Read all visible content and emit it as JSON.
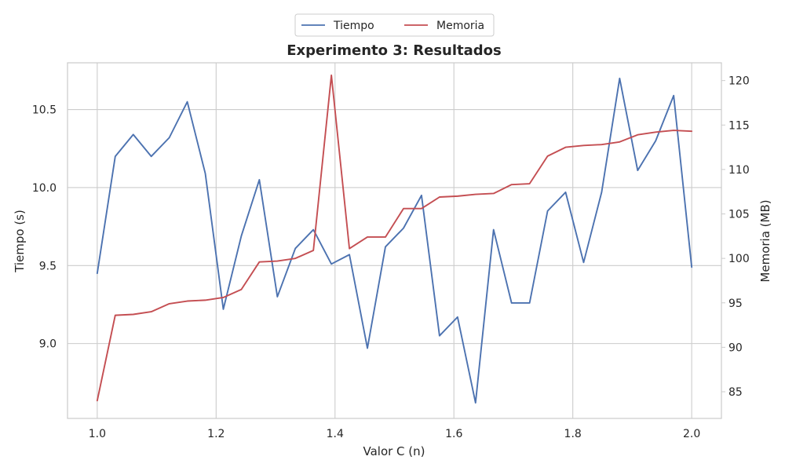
{
  "chart_data": {
    "type": "line",
    "title": "Experimento 3: Resultados",
    "xlabel": "Valor C (n)",
    "ylabel_left": "Tiempo (s)",
    "ylabel_right": "Memoria (MB)",
    "xlim": [
      0.95,
      2.05
    ],
    "ylim_left": [
      8.52,
      10.8
    ],
    "ylim_right": [
      82.0,
      122.0
    ],
    "xticks": [
      1.0,
      1.2,
      1.4,
      1.6,
      1.8,
      2.0
    ],
    "yticks_left": [
      9.0,
      9.5,
      10.0,
      10.5
    ],
    "yticks_right": [
      85,
      90,
      95,
      100,
      105,
      110,
      115,
      120
    ],
    "grid": true,
    "legend_position": "top-center, above plot",
    "series": [
      {
        "name": "Tiempo",
        "axis": "left",
        "color": "#4c72b0",
        "x": [
          1.0,
          1.0303,
          1.0606,
          1.0909,
          1.1212,
          1.1515,
          1.1818,
          1.2121,
          1.2424,
          1.2727,
          1.303,
          1.3333,
          1.3636,
          1.3939,
          1.4242,
          1.4545,
          1.4848,
          1.5152,
          1.5455,
          1.5758,
          1.6061,
          1.6364,
          1.6667,
          1.697,
          1.7273,
          1.7576,
          1.7879,
          1.8182,
          1.8485,
          1.8788,
          1.9091,
          1.9394,
          1.9697,
          2.0
        ],
        "values": [
          9.45,
          10.2,
          10.34,
          10.2,
          10.32,
          10.55,
          10.09,
          9.22,
          9.69,
          10.05,
          9.3,
          9.61,
          9.73,
          9.51,
          9.57,
          8.97,
          9.62,
          9.74,
          9.95,
          9.05,
          9.17,
          8.62,
          9.73,
          9.26,
          9.26,
          9.85,
          9.97,
          9.52,
          9.97,
          10.7,
          10.11,
          10.3,
          10.59,
          9.49
        ]
      },
      {
        "name": "Memoria",
        "axis": "right",
        "color": "#c44e52",
        "x": [
          1.0,
          1.0303,
          1.0606,
          1.0909,
          1.1212,
          1.1515,
          1.1818,
          1.2121,
          1.2424,
          1.2727,
          1.303,
          1.3333,
          1.3636,
          1.3939,
          1.4242,
          1.4545,
          1.4848,
          1.5152,
          1.5455,
          1.5758,
          1.6061,
          1.6364,
          1.6667,
          1.697,
          1.7273,
          1.7576,
          1.7879,
          1.8182,
          1.8485,
          1.8788,
          1.9091,
          1.9394,
          1.9697,
          2.0
        ],
        "values": [
          84.0,
          93.6,
          93.7,
          94.0,
          94.9,
          95.2,
          95.3,
          95.6,
          96.5,
          99.6,
          99.7,
          100.0,
          100.9,
          120.6,
          101.1,
          102.4,
          102.4,
          105.6,
          105.6,
          106.9,
          107.0,
          107.2,
          107.3,
          108.3,
          108.4,
          111.5,
          112.5,
          112.7,
          112.8,
          113.1,
          113.9,
          114.2,
          114.4,
          114.3
        ]
      }
    ]
  }
}
